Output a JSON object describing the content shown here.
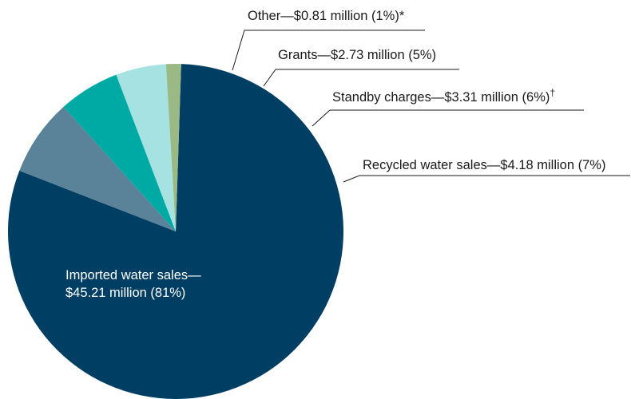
{
  "chart_data": {
    "type": "pie",
    "title": "",
    "start_angle_deg": 88.13,
    "direction": "clockwise",
    "slices": [
      {
        "label": "Imported water sales",
        "line1": "Imported water sales—",
        "line2": "$45.21 million (81%)",
        "value_million": 45.21,
        "percent": 81,
        "color": "#003f63"
      },
      {
        "label": "Recycled water sales",
        "line1": "Recycled water sales—$4.18 million (7%)",
        "value_million": 4.18,
        "percent": 7,
        "color": "#5a8299"
      },
      {
        "label": "Standby charges",
        "line1": "Standby charges—$3.31 million (6%)",
        "footnote_mark": "†",
        "value_million": 3.31,
        "percent": 6,
        "color": "#00aaa4"
      },
      {
        "label": "Grants",
        "line1": "Grants—$2.73 million (5%)",
        "value_million": 2.73,
        "percent": 5,
        "color": "#a6e2e2"
      },
      {
        "label": "Other",
        "line1": "Other—$0.81 million (1%)*",
        "value_million": 0.81,
        "percent": 1,
        "color": "#9ab984"
      }
    ]
  }
}
